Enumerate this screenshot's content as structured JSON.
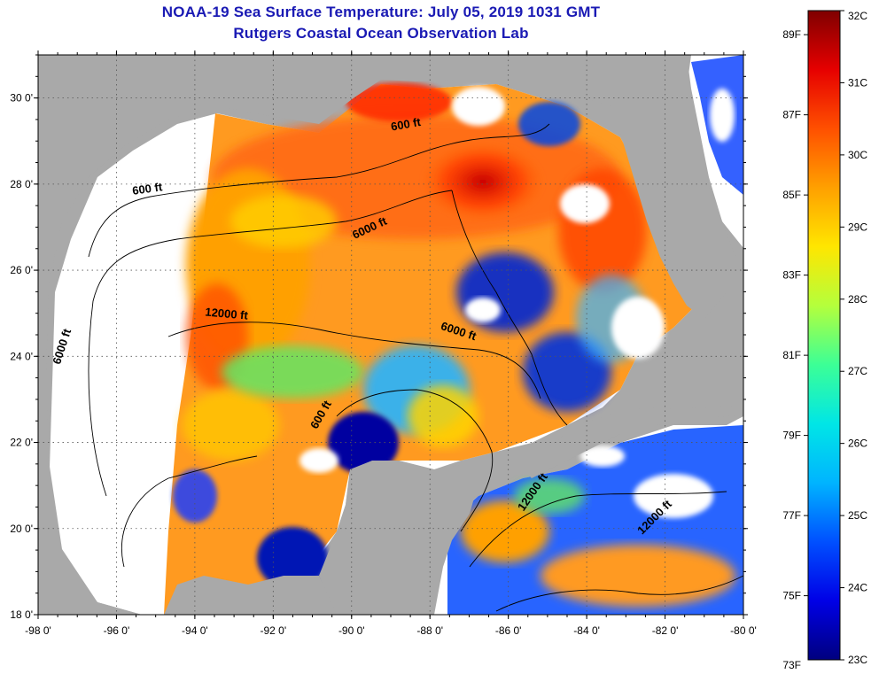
{
  "title": {
    "line1": "NOAA-19 Sea Surface Temperature:  July 05, 2019 1031 GMT",
    "line2": "Rutgers Coastal Ocean Observation Lab"
  },
  "map": {
    "lon_range": [
      -98,
      -80
    ],
    "lat_range": [
      18,
      31
    ],
    "x_ticks": [
      {
        "value": -98,
        "label": "-98 0'"
      },
      {
        "value": -96,
        "label": "-96 0'"
      },
      {
        "value": -94,
        "label": "-94 0'"
      },
      {
        "value": -92,
        "label": "-92 0'"
      },
      {
        "value": -90,
        "label": "-90 0'"
      },
      {
        "value": -88,
        "label": "-88 0'"
      },
      {
        "value": -86,
        "label": "-86 0'"
      },
      {
        "value": -84,
        "label": "-84 0'"
      },
      {
        "value": -82,
        "label": "-82 0'"
      },
      {
        "value": -80,
        "label": "-80 0'"
      }
    ],
    "y_ticks": [
      {
        "value": 30,
        "label": "30 0'"
      },
      {
        "value": 28,
        "label": "28 0'"
      },
      {
        "value": 26,
        "label": "26 0'"
      },
      {
        "value": 24,
        "label": "24 0'"
      },
      {
        "value": 22,
        "label": "22 0'"
      },
      {
        "value": 20,
        "label": "20 0'"
      },
      {
        "value": 18,
        "label": "18 0'"
      }
    ],
    "grid": "dotted",
    "colors": {
      "land": "#a9a9a9",
      "no_data": "#ffffff"
    },
    "contour_labels": [
      {
        "text": "600 ft",
        "lon": -95.2,
        "lat": 27.8,
        "angle": -8
      },
      {
        "text": "600 ft",
        "lon": -88.6,
        "lat": 29.3,
        "angle": -10
      },
      {
        "text": "6000 ft",
        "lon": -89.5,
        "lat": 26.9,
        "angle": -25
      },
      {
        "text": "6000 ft",
        "lon": -97.3,
        "lat": 24.2,
        "angle": -72
      },
      {
        "text": "12000 ft",
        "lon": -93.2,
        "lat": 24.9,
        "angle": 5
      },
      {
        "text": "6000 ft",
        "lon": -87.3,
        "lat": 24.5,
        "angle": 18
      },
      {
        "text": "12000 ft",
        "lon": -85.3,
        "lat": 20.8,
        "angle": -55
      },
      {
        "text": "12000 ft",
        "lon": -82.2,
        "lat": 20.2,
        "angle": -45
      },
      {
        "text": "600 ft",
        "lon": -90.7,
        "lat": 22.6,
        "angle": -60
      }
    ]
  },
  "colorbar": {
    "min_c": 23,
    "max_c": 32,
    "celsius_labels": [
      {
        "value": 32,
        "label": "32C"
      },
      {
        "value": 31,
        "label": "31C"
      },
      {
        "value": 30,
        "label": "30C"
      },
      {
        "value": 29,
        "label": "29C"
      },
      {
        "value": 28,
        "label": "28C"
      },
      {
        "value": 27,
        "label": "27C"
      },
      {
        "value": 26,
        "label": "26C"
      },
      {
        "value": 25,
        "label": "25C"
      },
      {
        "value": 24,
        "label": "24C"
      },
      {
        "value": 23,
        "label": "23C"
      }
    ],
    "fahrenheit_labels": [
      {
        "value": 89,
        "label": "89F"
      },
      {
        "value": 87,
        "label": "87F"
      },
      {
        "value": 85,
        "label": "85F"
      },
      {
        "value": 83,
        "label": "83F"
      },
      {
        "value": 81,
        "label": "81F"
      },
      {
        "value": 79,
        "label": "79F"
      },
      {
        "value": 77,
        "label": "77F"
      },
      {
        "value": 75,
        "label": "75F"
      },
      {
        "value": 73,
        "label": "73F"
      }
    ],
    "gradient_colors": [
      "#00007f",
      "#0000e6",
      "#0050ff",
      "#00b4ff",
      "#00e6e6",
      "#3cff96",
      "#b4ff3c",
      "#ffe600",
      "#ffa000",
      "#ff5000",
      "#e60000",
      "#7f0000"
    ]
  }
}
